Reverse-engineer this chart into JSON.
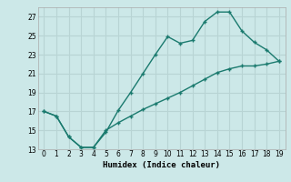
{
  "title": "",
  "xlabel": "Humidex (Indice chaleur)",
  "background_color": "#cce8e8",
  "grid_color": "#b8d4d4",
  "line_color": "#1a7a6e",
  "line1_x": [
    0,
    1,
    2,
    3,
    4,
    5,
    6,
    7,
    8,
    9,
    10,
    11,
    12,
    13,
    14,
    15,
    16,
    17,
    18,
    19
  ],
  "line1_y": [
    17.0,
    16.5,
    14.3,
    13.2,
    13.2,
    14.8,
    17.1,
    19.0,
    21.0,
    23.0,
    24.9,
    24.2,
    24.5,
    26.5,
    27.5,
    27.5,
    25.5,
    24.3,
    23.5,
    22.3
  ],
  "line2_x": [
    0,
    1,
    2,
    3,
    4,
    5,
    6,
    7,
    8,
    9,
    10,
    11,
    12,
    13,
    14,
    15,
    16,
    17,
    18,
    19
  ],
  "line2_y": [
    17.0,
    16.5,
    14.3,
    13.2,
    13.2,
    15.0,
    15.8,
    16.5,
    17.2,
    17.8,
    18.4,
    19.0,
    19.7,
    20.4,
    21.1,
    21.5,
    21.8,
    21.8,
    22.0,
    22.3
  ],
  "xlim": [
    0,
    19
  ],
  "ylim": [
    13,
    28
  ],
  "yticks": [
    13,
    15,
    17,
    19,
    21,
    23,
    25,
    27
  ],
  "xticks": [
    0,
    1,
    2,
    3,
    4,
    5,
    6,
    7,
    8,
    9,
    10,
    11,
    12,
    13,
    14,
    15,
    16,
    17,
    18,
    19
  ]
}
